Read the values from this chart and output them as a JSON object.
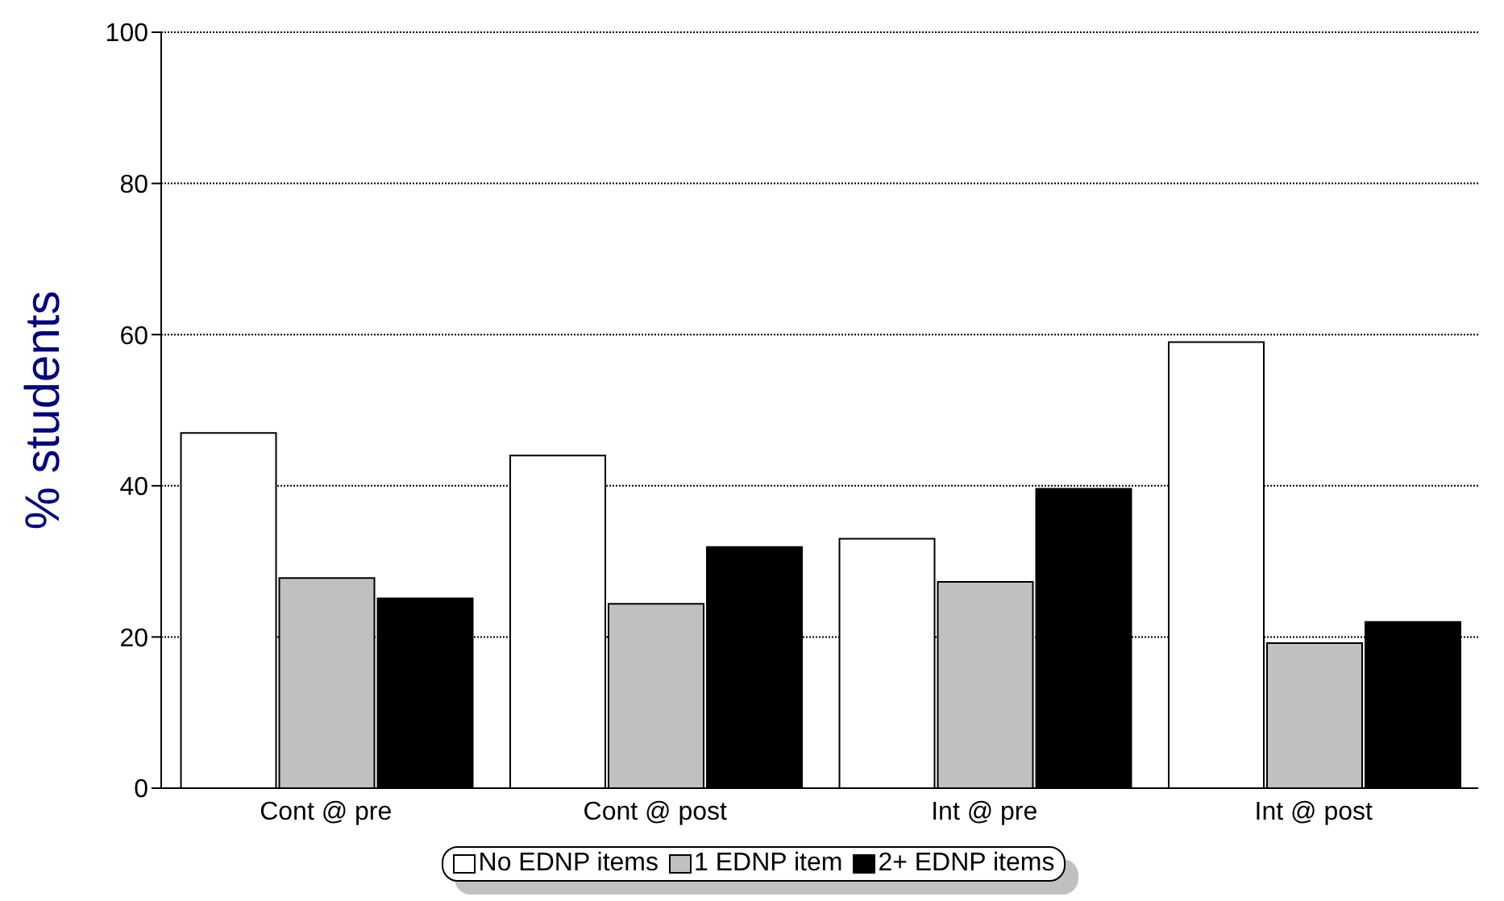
{
  "chart_data": {
    "type": "bar",
    "ylabel": "% students",
    "categories": [
      "Cont @ pre",
      "Cont @ post",
      "Int @ pre",
      "Int @ post"
    ],
    "series": [
      {
        "name": "No EDNP items",
        "color": "#ffffff",
        "values": [
          47,
          44,
          33,
          59
        ]
      },
      {
        "name": "1 EDNP item",
        "color": "#c0c0c0",
        "values": [
          27.8,
          24.4,
          27.3,
          19.2
        ]
      },
      {
        "name": "2+ EDNP items",
        "color": "#000000",
        "values": [
          25.1,
          31.9,
          39.6,
          22
        ]
      }
    ],
    "ylim": [
      0,
      100
    ],
    "yticks": [
      0,
      20,
      40,
      60,
      80,
      100
    ],
    "grid": "y",
    "legend": "bottom"
  }
}
